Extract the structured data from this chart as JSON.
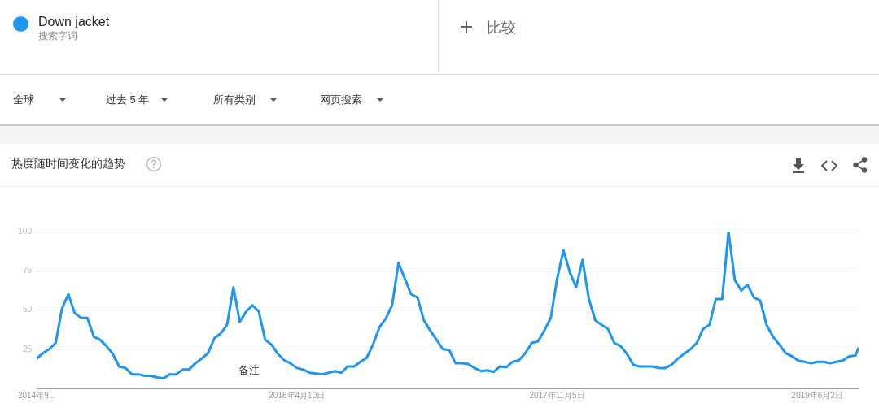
{
  "chart_data": {
    "type": "line",
    "title": "热度随时间变化的趋势",
    "legend": "top left",
    "grid": "y",
    "annotations": [
      "搜索字词",
      "比较",
      "全球",
      "过去 5 年",
      "所有类别",
      "网页搜索",
      "备注"
    ],
    "x": [
      "2014-09-14",
      "2014-09-28",
      "2014-10-12",
      "2014-10-26",
      "2014-11-09",
      "2014-11-23",
      "2014-12-07",
      "2014-12-21",
      "2015-01-04",
      "2015-01-18",
      "2015-02-01",
      "2015-02-15",
      "2015-03-01",
      "2015-03-15",
      "2015-03-29",
      "2015-04-12",
      "2015-04-26",
      "2015-05-10",
      "2015-05-24",
      "2015-06-07",
      "2015-06-21",
      "2015-07-05",
      "2015-07-19",
      "2015-08-02",
      "2015-08-16",
      "2015-08-30",
      "2015-09-13",
      "2015-09-27",
      "2015-10-11",
      "2015-10-25",
      "2015-11-08",
      "2015-11-22",
      "2015-12-06",
      "2015-12-20",
      "2016-01-03",
      "2016-01-17",
      "2016-01-31",
      "2016-02-14",
      "2016-02-28",
      "2016-03-13",
      "2016-03-27",
      "2016-04-10",
      "2016-04-24",
      "2016-05-08",
      "2016-05-22",
      "2016-06-05",
      "2016-06-19",
      "2016-07-03",
      "2016-07-17",
      "2016-07-31",
      "2016-08-14",
      "2016-08-28",
      "2016-09-11",
      "2016-09-25",
      "2016-10-09",
      "2016-10-23",
      "2016-11-06",
      "2016-11-20",
      "2016-12-04",
      "2016-12-18",
      "2017-01-01",
      "2017-01-15",
      "2017-01-29",
      "2017-02-12",
      "2017-02-26",
      "2017-03-12",
      "2017-03-26",
      "2017-04-09",
      "2017-04-23",
      "2017-05-07",
      "2017-05-21",
      "2017-06-04",
      "2017-06-18",
      "2017-07-02",
      "2017-07-16",
      "2017-07-30",
      "2017-08-13",
      "2017-08-27",
      "2017-09-10",
      "2017-09-24",
      "2017-10-08",
      "2017-10-22",
      "2017-11-05",
      "2017-11-19",
      "2017-12-03",
      "2017-12-17",
      "2017-12-31",
      "2018-01-14",
      "2018-01-28",
      "2018-02-11",
      "2018-02-25",
      "2018-03-11",
      "2018-03-25",
      "2018-04-08",
      "2018-04-22",
      "2018-05-06",
      "2018-05-20",
      "2018-06-03",
      "2018-06-17",
      "2018-07-01",
      "2018-07-15",
      "2018-07-29",
      "2018-08-12",
      "2018-08-26",
      "2018-09-09",
      "2018-09-23",
      "2018-10-07",
      "2018-10-21",
      "2018-11-04",
      "2018-11-18",
      "2018-12-02",
      "2018-12-16",
      "2018-12-30",
      "2019-01-13",
      "2019-01-27",
      "2019-02-10",
      "2019-02-24",
      "2019-03-10",
      "2019-03-24",
      "2019-04-07",
      "2019-04-21",
      "2019-05-05",
      "2019-05-19",
      "2019-06-02",
      "2019-06-16",
      "2019-06-30",
      "2019-07-14",
      "2019-07-28",
      "2019-08-11",
      "2019-08-25",
      "2019-09-01"
    ],
    "series": [
      {
        "name": "Down jacket",
        "color": "#1e96f0",
        "values": [
          19,
          22.5,
          25,
          29,
          51,
          60,
          48,
          45,
          45,
          33,
          31,
          27,
          22,
          14,
          13,
          9,
          9,
          8,
          8,
          7,
          6.5,
          9,
          9,
          12,
          12,
          16,
          19,
          22.5,
          32,
          35,
          40.5,
          64.5,
          42.5,
          49,
          53,
          49,
          31,
          28,
          22,
          18,
          16,
          13,
          12,
          10,
          9.5,
          9,
          10,
          11,
          10,
          14,
          14,
          17,
          19.5,
          28,
          39,
          44.5,
          53,
          80,
          70,
          60,
          58,
          43.5,
          37,
          31,
          25,
          24.5,
          16,
          16,
          15.5,
          13,
          11,
          11.5,
          10.5,
          14,
          13.5,
          17,
          18,
          22.5,
          29,
          30,
          37,
          45,
          70,
          88,
          74,
          64.5,
          82,
          57,
          43.5,
          40.5,
          38,
          29,
          27,
          22,
          15,
          14,
          14,
          14,
          13,
          13,
          15,
          19,
          22,
          25,
          29,
          38,
          40.5,
          57,
          57,
          100,
          69,
          62.5,
          66,
          58,
          56,
          40.5,
          33,
          28,
          22.5,
          20.5,
          17.7,
          17,
          16,
          17,
          17,
          16,
          17,
          17.7,
          20.5,
          21,
          26
        ]
      }
    ],
    "xlim": [
      "2014-09-14",
      "2019-09-01"
    ],
    "xticks": [
      {
        "value": "2014-09-14",
        "label": "2014年9..."
      },
      {
        "value": "2016-04-10",
        "label": "2016年4月10日"
      },
      {
        "value": "2017-11-05",
        "label": "2017年11月5日"
      },
      {
        "value": "2019-06-02",
        "label": "2019年6月2日"
      }
    ],
    "ylim": [
      0,
      100
    ],
    "yticks": [
      25,
      50,
      75,
      100
    ]
  }
}
